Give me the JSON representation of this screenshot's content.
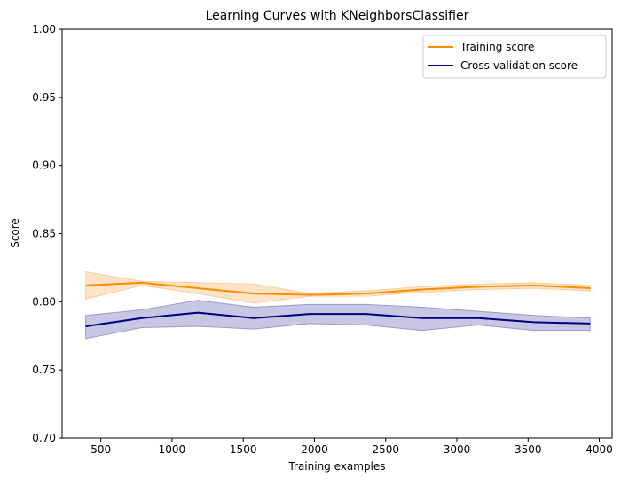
{
  "chart_data": {
    "type": "line",
    "title": "Learning Curves with KNeighborsClassifier",
    "xlabel": "Training examples",
    "ylabel": "Score",
    "xlim": [
      228,
      4090
    ],
    "ylim": [
      0.7,
      1.0
    ],
    "xticks": [
      500,
      1000,
      1500,
      2000,
      2500,
      3000,
      3500,
      4000
    ],
    "yticks": [
      0.7,
      0.75,
      0.8,
      0.85,
      0.9,
      0.95,
      1.0
    ],
    "ytick_labels": [
      "0.70",
      "0.75",
      "0.80",
      "0.85",
      "0.90",
      "0.95",
      "1.00"
    ],
    "grid": false,
    "legend_position": "top-right",
    "x": [
      394,
      787,
      1181,
      1574,
      1968,
      2362,
      2755,
      3149,
      3542,
      3936
    ],
    "series": [
      {
        "name": "Training score",
        "color": "#ff8c00",
        "fill_color": "#ffcc99",
        "values": [
          0.812,
          0.814,
          0.81,
          0.806,
          0.805,
          0.806,
          0.809,
          0.811,
          0.812,
          0.81
        ],
        "band_upper": [
          0.822,
          0.815,
          0.814,
          0.813,
          0.806,
          0.808,
          0.811,
          0.813,
          0.814,
          0.812
        ],
        "band_lower": [
          0.802,
          0.812,
          0.806,
          0.799,
          0.804,
          0.804,
          0.807,
          0.809,
          0.81,
          0.808
        ]
      },
      {
        "name": "Cross-validation score",
        "color": "#000080",
        "fill_color": "#9999cc",
        "values": [
          0.782,
          0.788,
          0.792,
          0.788,
          0.791,
          0.791,
          0.788,
          0.788,
          0.785,
          0.784
        ],
        "band_upper": [
          0.79,
          0.794,
          0.801,
          0.796,
          0.798,
          0.798,
          0.796,
          0.793,
          0.79,
          0.788
        ],
        "band_lower": [
          0.773,
          0.781,
          0.782,
          0.78,
          0.784,
          0.783,
          0.779,
          0.783,
          0.779,
          0.779
        ]
      }
    ]
  }
}
